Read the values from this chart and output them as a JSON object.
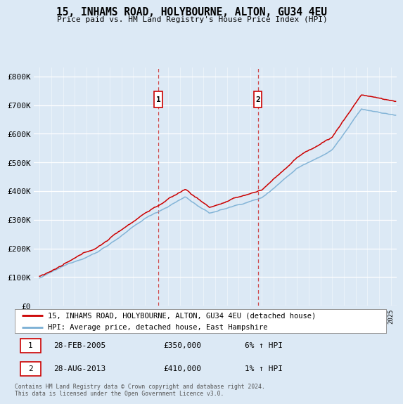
{
  "title": "15, INHAMS ROAD, HOLYBOURNE, ALTON, GU34 4EU",
  "subtitle": "Price paid vs. HM Land Registry's House Price Index (HPI)",
  "legend_line1": "15, INHAMS ROAD, HOLYBOURNE, ALTON, GU34 4EU (detached house)",
  "legend_line2": "HPI: Average price, detached house, East Hampshire",
  "sale1_date": "28-FEB-2005",
  "sale1_price": "£350,000",
  "sale1_hpi": "6% ↑ HPI",
  "sale1_x": 2005.15,
  "sale1_y": 350000,
  "sale2_date": "28-AUG-2013",
  "sale2_price": "£410,000",
  "sale2_hpi": "1% ↑ HPI",
  "sale2_x": 2013.65,
  "sale2_y": 410000,
  "footer": "Contains HM Land Registry data © Crown copyright and database right 2024.\nThis data is licensed under the Open Government Licence v3.0.",
  "bg_color": "#dce9f5",
  "line_color_red": "#cc0000",
  "line_color_blue": "#7aafd4",
  "marker_box_color": "#cc0000",
  "ylim": [
    0,
    830000
  ],
  "xlim": [
    1994.5,
    2025.5
  ],
  "yticks": [
    0,
    100000,
    200000,
    300000,
    400000,
    500000,
    600000,
    700000,
    800000
  ],
  "ytick_labels": [
    "£0",
    "£100K",
    "£200K",
    "£300K",
    "£400K",
    "£500K",
    "£600K",
    "£700K",
    "£800K"
  ]
}
